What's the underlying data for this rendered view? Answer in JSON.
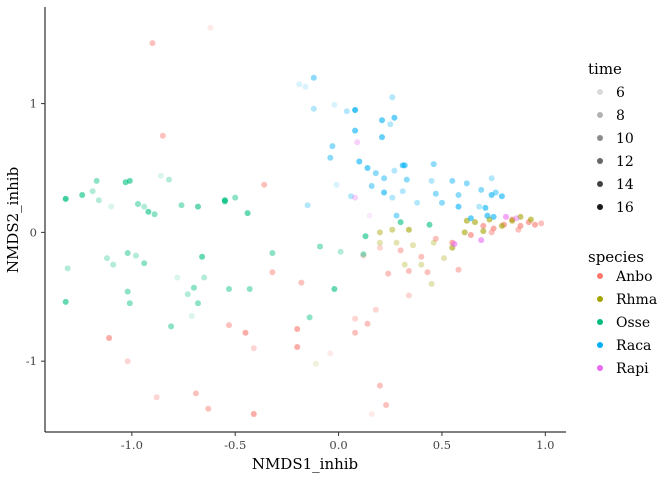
{
  "chart_data": {
    "type": "scatter",
    "xlabel": "NMDS1_inhib",
    "ylabel": "NMDS2_inhib",
    "xlim": [
      -1.42,
      1.1
    ],
    "ylim": [
      -1.55,
      1.75
    ],
    "xticks": [
      -1.0,
      -0.5,
      0.0,
      0.5,
      1.0
    ],
    "xtick_labels": [
      "-1.0",
      "-0.5",
      "0.0",
      "0.5",
      "1.0"
    ],
    "yticks": [
      -1,
      0,
      1
    ],
    "ytick_labels": [
      "-1",
      "0",
      "1"
    ],
    "grid": false,
    "legend": {
      "placement": "right",
      "time": {
        "title": "time",
        "labels": [
          "6",
          "8",
          "10",
          "12",
          "14",
          "16"
        ],
        "values": [
          6,
          8,
          10,
          12,
          14,
          16
        ]
      },
      "species": {
        "title": "species",
        "labels": [
          "Anbo",
          "Rhma",
          "Osse",
          "Raca",
          "Rapi"
        ]
      }
    },
    "colors": {
      "Anbo": "#F8766D",
      "Rhma": "#A3A500",
      "Osse": "#00BF7D",
      "Raca": "#00B0F6",
      "Rapi": "#E76BF3"
    },
    "points": [
      {
        "species": "Anbo",
        "time": 10,
        "x": -0.9,
        "y": 1.47
      },
      {
        "species": "Anbo",
        "time": 6,
        "x": -0.62,
        "y": 1.59
      },
      {
        "species": "Anbo",
        "time": 10,
        "x": -0.85,
        "y": 0.75
      },
      {
        "species": "Anbo",
        "time": 10,
        "x": -0.36,
        "y": 0.37
      },
      {
        "species": "Anbo",
        "time": 10,
        "x": -0.32,
        "y": -0.31
      },
      {
        "species": "Anbo",
        "time": 10,
        "x": -0.18,
        "y": -0.39
      },
      {
        "species": "Anbo",
        "time": 12,
        "x": -1.11,
        "y": -0.82
      },
      {
        "species": "Anbo",
        "time": 8,
        "x": -1.02,
        "y": -1.0
      },
      {
        "species": "Anbo",
        "time": 8,
        "x": -0.88,
        "y": -1.28
      },
      {
        "species": "Anbo",
        "time": 10,
        "x": -0.69,
        "y": -1.25
      },
      {
        "species": "Anbo",
        "time": 10,
        "x": -0.63,
        "y": -1.37
      },
      {
        "species": "Anbo",
        "time": 12,
        "x": -0.41,
        "y": -1.41
      },
      {
        "species": "Anbo",
        "time": 8,
        "x": -0.41,
        "y": -0.9
      },
      {
        "species": "Anbo",
        "time": 12,
        "x": -0.45,
        "y": -0.78
      },
      {
        "species": "Anbo",
        "time": 10,
        "x": -0.53,
        "y": -0.72
      },
      {
        "species": "Anbo",
        "time": 12,
        "x": -0.2,
        "y": -0.89
      },
      {
        "species": "Anbo",
        "time": 12,
        "x": -0.2,
        "y": -0.75
      },
      {
        "species": "Anbo",
        "time": 6,
        "x": -0.04,
        "y": -0.94
      },
      {
        "species": "Anbo",
        "time": 6,
        "x": 0.16,
        "y": -1.41
      },
      {
        "species": "Anbo",
        "time": 10,
        "x": 0.23,
        "y": -1.34
      },
      {
        "species": "Anbo",
        "time": 10,
        "x": 0.2,
        "y": -1.19
      },
      {
        "species": "Anbo",
        "time": 8,
        "x": 0.08,
        "y": -0.67
      },
      {
        "species": "Anbo",
        "time": 10,
        "x": 0.14,
        "y": -0.71
      },
      {
        "species": "Anbo",
        "time": 10,
        "x": 0.08,
        "y": -0.78
      },
      {
        "species": "Anbo",
        "time": 8,
        "x": 0.18,
        "y": -0.6
      },
      {
        "species": "Anbo",
        "time": 8,
        "x": 0.34,
        "y": -0.49
      },
      {
        "species": "Anbo",
        "time": 10,
        "x": 0.24,
        "y": -0.32
      },
      {
        "species": "Anbo",
        "time": 10,
        "x": 0.34,
        "y": -0.3
      },
      {
        "species": "Anbo",
        "time": 10,
        "x": 0.43,
        "y": -0.31
      },
      {
        "species": "Anbo",
        "time": 8,
        "x": 0.12,
        "y": -0.18
      },
      {
        "species": "Anbo",
        "time": 8,
        "x": 0.2,
        "y": -0.12
      },
      {
        "species": "Anbo",
        "time": 10,
        "x": 0.3,
        "y": -0.14
      },
      {
        "species": "Anbo",
        "time": 10,
        "x": 0.4,
        "y": -0.19
      },
      {
        "species": "Anbo",
        "time": 10,
        "x": 0.47,
        "y": -0.05
      },
      {
        "species": "Anbo",
        "time": 10,
        "x": 0.58,
        "y": -0.29
      },
      {
        "species": "Anbo",
        "time": 12,
        "x": 0.55,
        "y": -0.08
      },
      {
        "species": "Anbo",
        "time": 12,
        "x": 0.64,
        "y": -0.02
      },
      {
        "species": "Anbo",
        "time": 12,
        "x": 0.7,
        "y": 0.05
      },
      {
        "species": "Anbo",
        "time": 12,
        "x": 0.75,
        "y": 0.03
      },
      {
        "species": "Anbo",
        "time": 12,
        "x": 0.8,
        "y": 0.06
      },
      {
        "species": "Anbo",
        "time": 12,
        "x": 0.84,
        "y": 0.1
      },
      {
        "species": "Anbo",
        "time": 12,
        "x": 0.88,
        "y": 0.05
      },
      {
        "species": "Anbo",
        "time": 12,
        "x": 0.92,
        "y": 0.08
      },
      {
        "species": "Anbo",
        "time": 12,
        "x": 0.95,
        "y": 0.06
      },
      {
        "species": "Anbo",
        "time": 10,
        "x": 0.98,
        "y": 0.07
      },
      {
        "species": "Anbo",
        "time": 10,
        "x": 0.87,
        "y": 0.02
      },
      {
        "species": "Anbo",
        "time": 10,
        "x": 0.74,
        "y": 0.0
      },
      {
        "species": "Rhma",
        "time": 6,
        "x": -0.11,
        "y": -1.02
      },
      {
        "species": "Rhma",
        "time": 8,
        "x": 0.2,
        "y": -0.08
      },
      {
        "species": "Rhma",
        "time": 8,
        "x": 0.28,
        "y": -0.08
      },
      {
        "species": "Rhma",
        "time": 8,
        "x": 0.36,
        "y": -0.1
      },
      {
        "species": "Rhma",
        "time": 8,
        "x": 0.46,
        "y": -0.08
      },
      {
        "species": "Rhma",
        "time": 12,
        "x": 0.55,
        "y": -0.12
      },
      {
        "species": "Rhma",
        "time": 12,
        "x": 0.61,
        "y": 0.0
      },
      {
        "species": "Rhma",
        "time": 12,
        "x": 0.62,
        "y": 0.09
      },
      {
        "species": "Rhma",
        "time": 12,
        "x": 0.66,
        "y": 0.08
      },
      {
        "species": "Rhma",
        "time": 12,
        "x": 0.7,
        "y": 0.01
      },
      {
        "species": "Rhma",
        "time": 12,
        "x": 0.73,
        "y": 0.1
      },
      {
        "species": "Rhma",
        "time": 12,
        "x": 0.79,
        "y": 0.05
      },
      {
        "species": "Rhma",
        "time": 12,
        "x": 0.84,
        "y": 0.09
      },
      {
        "species": "Rhma",
        "time": 12,
        "x": 0.88,
        "y": 0.12
      },
      {
        "species": "Rhma",
        "time": 12,
        "x": 0.93,
        "y": 0.1
      },
      {
        "species": "Rhma",
        "time": 8,
        "x": 0.45,
        "y": -0.4
      },
      {
        "species": "Rhma",
        "time": 8,
        "x": 0.51,
        "y": -0.2
      },
      {
        "species": "Rhma",
        "time": 8,
        "x": 0.4,
        "y": -0.25
      },
      {
        "species": "Rhma",
        "time": 8,
        "x": 0.32,
        "y": -0.25
      },
      {
        "species": "Rhma",
        "time": 10,
        "x": 0.2,
        "y": 0.0
      },
      {
        "species": "Rhma",
        "time": 10,
        "x": 0.26,
        "y": 0.02
      },
      {
        "species": "Rhma",
        "time": 12,
        "x": 0.34,
        "y": 0.02
      },
      {
        "species": "Osse",
        "time": 12,
        "x": -1.32,
        "y": -0.54
      },
      {
        "species": "Osse",
        "time": 8,
        "x": -1.31,
        "y": -0.28
      },
      {
        "species": "Osse",
        "time": 14,
        "x": -1.32,
        "y": 0.26
      },
      {
        "species": "Osse",
        "time": 12,
        "x": -1.24,
        "y": 0.29
      },
      {
        "species": "Osse",
        "time": 8,
        "x": -1.19,
        "y": 0.32
      },
      {
        "species": "Osse",
        "time": 10,
        "x": -1.17,
        "y": 0.4
      },
      {
        "species": "Osse",
        "time": 8,
        "x": -1.16,
        "y": 0.25
      },
      {
        "species": "Osse",
        "time": 6,
        "x": -1.1,
        "y": 0.2
      },
      {
        "species": "Osse",
        "time": 12,
        "x": -1.03,
        "y": 0.39
      },
      {
        "species": "Osse",
        "time": 12,
        "x": -1.01,
        "y": 0.4
      },
      {
        "species": "Osse",
        "time": 10,
        "x": -0.97,
        "y": 0.22
      },
      {
        "species": "Osse",
        "time": 8,
        "x": -0.94,
        "y": 0.2
      },
      {
        "species": "Osse",
        "time": 12,
        "x": -0.92,
        "y": 0.16
      },
      {
        "species": "Osse",
        "time": 10,
        "x": -0.89,
        "y": 0.14
      },
      {
        "species": "Osse",
        "time": 6,
        "x": -0.86,
        "y": 0.44
      },
      {
        "species": "Osse",
        "time": 8,
        "x": -0.82,
        "y": 0.41
      },
      {
        "species": "Osse",
        "time": 10,
        "x": -0.76,
        "y": 0.21
      },
      {
        "species": "Osse",
        "time": 12,
        "x": -0.68,
        "y": 0.2
      },
      {
        "species": "Osse",
        "time": 14,
        "x": -0.55,
        "y": 0.25
      },
      {
        "species": "Osse",
        "time": 10,
        "x": -0.5,
        "y": 0.27
      },
      {
        "species": "Osse",
        "time": 12,
        "x": -0.44,
        "y": 0.15
      },
      {
        "species": "Osse",
        "time": 12,
        "x": -0.55,
        "y": 0.24
      },
      {
        "species": "Osse",
        "time": 8,
        "x": -1.12,
        "y": -0.2
      },
      {
        "species": "Osse",
        "time": 8,
        "x": -1.09,
        "y": -0.25
      },
      {
        "species": "Osse",
        "time": 10,
        "x": -1.02,
        "y": -0.16
      },
      {
        "species": "Osse",
        "time": 8,
        "x": -0.98,
        "y": -0.18
      },
      {
        "species": "Osse",
        "time": 10,
        "x": -0.94,
        "y": -0.24
      },
      {
        "species": "Osse",
        "time": 10,
        "x": -1.02,
        "y": -0.46
      },
      {
        "species": "Osse",
        "time": 10,
        "x": -1.01,
        "y": -0.55
      },
      {
        "species": "Osse",
        "time": 10,
        "x": -0.81,
        "y": -0.73
      },
      {
        "species": "Osse",
        "time": 6,
        "x": -0.78,
        "y": -0.35
      },
      {
        "species": "Osse",
        "time": 8,
        "x": -0.73,
        "y": -0.48
      },
      {
        "species": "Osse",
        "time": 10,
        "x": -0.7,
        "y": -0.43
      },
      {
        "species": "Osse",
        "time": 10,
        "x": -0.68,
        "y": -0.55
      },
      {
        "species": "Osse",
        "time": 6,
        "x": -0.71,
        "y": -0.65
      },
      {
        "species": "Osse",
        "time": 8,
        "x": -0.65,
        "y": -0.35
      },
      {
        "species": "Osse",
        "time": 12,
        "x": -0.66,
        "y": -0.19
      },
      {
        "species": "Osse",
        "time": 10,
        "x": -0.53,
        "y": -0.44
      },
      {
        "species": "Osse",
        "time": 10,
        "x": -0.43,
        "y": -0.44
      },
      {
        "species": "Osse",
        "time": 10,
        "x": -0.32,
        "y": -0.16
      },
      {
        "species": "Osse",
        "time": 10,
        "x": -0.14,
        "y": -0.66
      },
      {
        "species": "Osse",
        "time": 12,
        "x": -0.02,
        "y": -0.44
      },
      {
        "species": "Osse",
        "time": 10,
        "x": -0.09,
        "y": -0.11
      },
      {
        "species": "Osse",
        "time": 8,
        "x": 0.01,
        "y": -0.15
      },
      {
        "species": "Osse",
        "time": 10,
        "x": 0.12,
        "y": -0.17
      },
      {
        "species": "Osse",
        "time": 12,
        "x": 0.13,
        "y": -0.03
      },
      {
        "species": "Osse",
        "time": 12,
        "x": 0.3,
        "y": 0.08
      },
      {
        "species": "Osse",
        "time": 12,
        "x": 0.44,
        "y": 0.06
      },
      {
        "species": "Raca",
        "time": 10,
        "x": -0.12,
        "y": 1.2
      },
      {
        "species": "Raca",
        "time": 6,
        "x": -0.19,
        "y": 1.15
      },
      {
        "species": "Raca",
        "time": 6,
        "x": -0.16,
        "y": 1.13
      },
      {
        "species": "Raca",
        "time": 8,
        "x": -0.12,
        "y": 0.96
      },
      {
        "species": "Raca",
        "time": 6,
        "x": -0.02,
        "y": 0.99
      },
      {
        "species": "Raca",
        "time": 8,
        "x": 0.04,
        "y": 0.94
      },
      {
        "species": "Raca",
        "time": 14,
        "x": 0.08,
        "y": 0.95
      },
      {
        "species": "Raca",
        "time": 12,
        "x": 0.08,
        "y": 0.79
      },
      {
        "species": "Raca",
        "time": 12,
        "x": 0.21,
        "y": 0.87
      },
      {
        "species": "Raca",
        "time": 12,
        "x": 0.27,
        "y": 0.89
      },
      {
        "species": "Raca",
        "time": 8,
        "x": 0.25,
        "y": 0.84
      },
      {
        "species": "Raca",
        "time": 12,
        "x": 0.21,
        "y": 0.74
      },
      {
        "species": "Raca",
        "time": 8,
        "x": 0.26,
        "y": 1.05
      },
      {
        "species": "Raca",
        "time": 10,
        "x": -0.03,
        "y": 0.67
      },
      {
        "species": "Raca",
        "time": 10,
        "x": -0.04,
        "y": 0.58
      },
      {
        "species": "Raca",
        "time": 12,
        "x": 0.1,
        "y": 0.55
      },
      {
        "species": "Raca",
        "time": 12,
        "x": 0.14,
        "y": 0.5
      },
      {
        "species": "Raca",
        "time": 12,
        "x": 0.31,
        "y": 0.52
      },
      {
        "species": "Raca",
        "time": 12,
        "x": 0.32,
        "y": 0.52
      },
      {
        "species": "Raca",
        "time": 10,
        "x": 0.46,
        "y": 0.53
      },
      {
        "species": "Raca",
        "time": 8,
        "x": 0.27,
        "y": 0.48
      },
      {
        "species": "Raca",
        "time": 10,
        "x": 0.18,
        "y": 0.46
      },
      {
        "species": "Raca",
        "time": 10,
        "x": 0.22,
        "y": 0.42
      },
      {
        "species": "Raca",
        "time": 10,
        "x": 0.33,
        "y": 0.41
      },
      {
        "species": "Raca",
        "time": 8,
        "x": 0.45,
        "y": 0.4
      },
      {
        "species": "Raca",
        "time": 10,
        "x": 0.55,
        "y": 0.4
      },
      {
        "species": "Raca",
        "time": 10,
        "x": 0.62,
        "y": 0.38
      },
      {
        "species": "Raca",
        "time": 8,
        "x": 0.74,
        "y": 0.42
      },
      {
        "species": "Raca",
        "time": 10,
        "x": 0.69,
        "y": 0.33
      },
      {
        "species": "Raca",
        "time": 10,
        "x": 0.76,
        "y": 0.31
      },
      {
        "species": "Raca",
        "time": 12,
        "x": 0.74,
        "y": 0.29
      },
      {
        "species": "Raca",
        "time": 12,
        "x": 0.79,
        "y": 0.28
      },
      {
        "species": "Raca",
        "time": 10,
        "x": 0.58,
        "y": 0.29
      },
      {
        "species": "Raca",
        "time": 10,
        "x": 0.47,
        "y": 0.3
      },
      {
        "species": "Raca",
        "time": 8,
        "x": 0.31,
        "y": 0.32
      },
      {
        "species": "Raca",
        "time": 8,
        "x": 0.26,
        "y": 0.27
      },
      {
        "species": "Raca",
        "time": 12,
        "x": 0.22,
        "y": 0.31
      },
      {
        "species": "Raca",
        "time": 10,
        "x": 0.16,
        "y": 0.36
      },
      {
        "species": "Raca",
        "time": 8,
        "x": 0.06,
        "y": 0.28
      },
      {
        "species": "Raca",
        "time": 6,
        "x": -0.01,
        "y": 0.37
      },
      {
        "species": "Raca",
        "time": 8,
        "x": -0.15,
        "y": 0.21
      },
      {
        "species": "Raca",
        "time": 8,
        "x": 0.38,
        "y": 0.23
      },
      {
        "species": "Raca",
        "time": 10,
        "x": 0.5,
        "y": 0.23
      },
      {
        "species": "Raca",
        "time": 12,
        "x": 0.58,
        "y": 0.2
      },
      {
        "species": "Raca",
        "time": 12,
        "x": 0.64,
        "y": 0.11
      },
      {
        "species": "Raca",
        "time": 12,
        "x": 0.71,
        "y": 0.19
      },
      {
        "species": "Raca",
        "time": 12,
        "x": 0.72,
        "y": 0.13
      },
      {
        "species": "Raca",
        "time": 12,
        "x": 0.75,
        "y": 0.12
      },
      {
        "species": "Raca",
        "time": 8,
        "x": 0.68,
        "y": 0.2
      },
      {
        "species": "Raca",
        "time": 10,
        "x": 0.28,
        "y": 0.13
      },
      {
        "species": "Rapi",
        "time": 8,
        "x": 0.09,
        "y": 0.7
      },
      {
        "species": "Rapi",
        "time": 6,
        "x": 0.15,
        "y": 0.13
      },
      {
        "species": "Rapi",
        "time": 8,
        "x": 0.08,
        "y": 0.27
      },
      {
        "species": "Rapi",
        "time": 12,
        "x": 0.56,
        "y": -0.09
      },
      {
        "species": "Rapi",
        "time": 12,
        "x": 0.69,
        "y": -0.06
      },
      {
        "species": "Rapi",
        "time": 12,
        "x": 0.81,
        "y": 0.12
      },
      {
        "species": "Rapi",
        "time": 10,
        "x": 0.86,
        "y": 0.11
      }
    ]
  }
}
